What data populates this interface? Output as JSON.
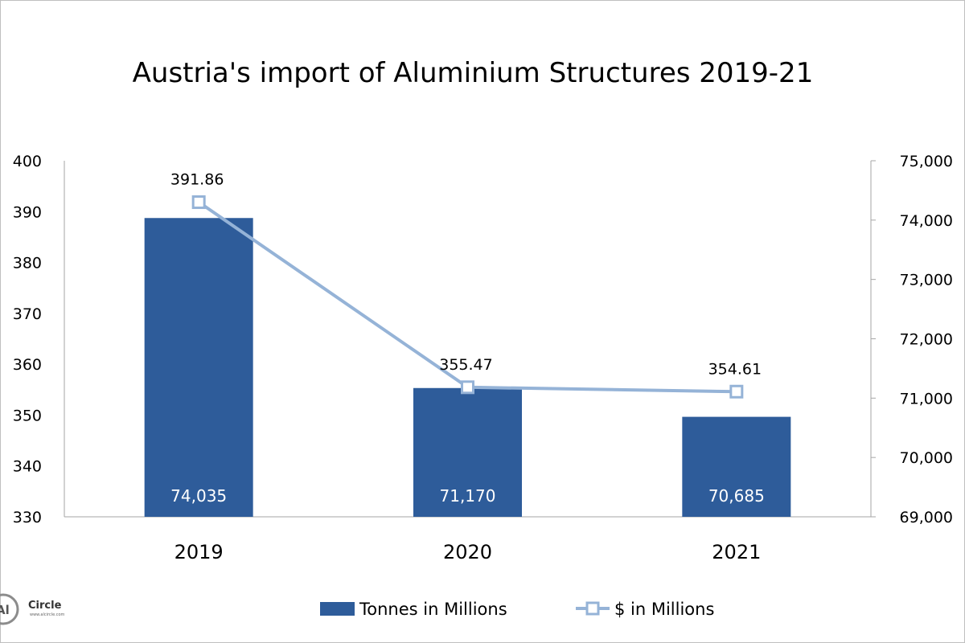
{
  "chart_data": {
    "type": "bar",
    "title": "Austria's import of Aluminium Structures 2019-21",
    "categories": [
      "2019",
      "2020",
      "2021"
    ],
    "series": [
      {
        "name": "Tonnes in Millions",
        "kind": "bar",
        "axis": "right",
        "values": [
          74035,
          71170,
          70685
        ],
        "labels": [
          "74,035",
          "71,170",
          "70,685"
        ],
        "color": "#2e5c9a"
      },
      {
        "name": "$ in Millions",
        "kind": "line",
        "axis": "left",
        "values": [
          391.86,
          355.47,
          354.61
        ],
        "labels": [
          "391.86",
          "355.47",
          "354.61"
        ],
        "color": "#95b3d7"
      }
    ],
    "y_left": {
      "ylim": [
        330,
        400
      ],
      "ticks": [
        "400",
        "390",
        "380",
        "370",
        "360",
        "350",
        "340",
        "330"
      ]
    },
    "y_right": {
      "ylim": [
        69000,
        75000
      ],
      "ticks": [
        "75,000",
        "74,000",
        "73,000",
        "72,000",
        "71,000",
        "70,000",
        "69,000"
      ]
    },
    "legend_position": "bottom",
    "grid": false
  },
  "logo": {
    "text": "Circle",
    "mark": "Al",
    "tagline": "www.alcircle.com"
  }
}
